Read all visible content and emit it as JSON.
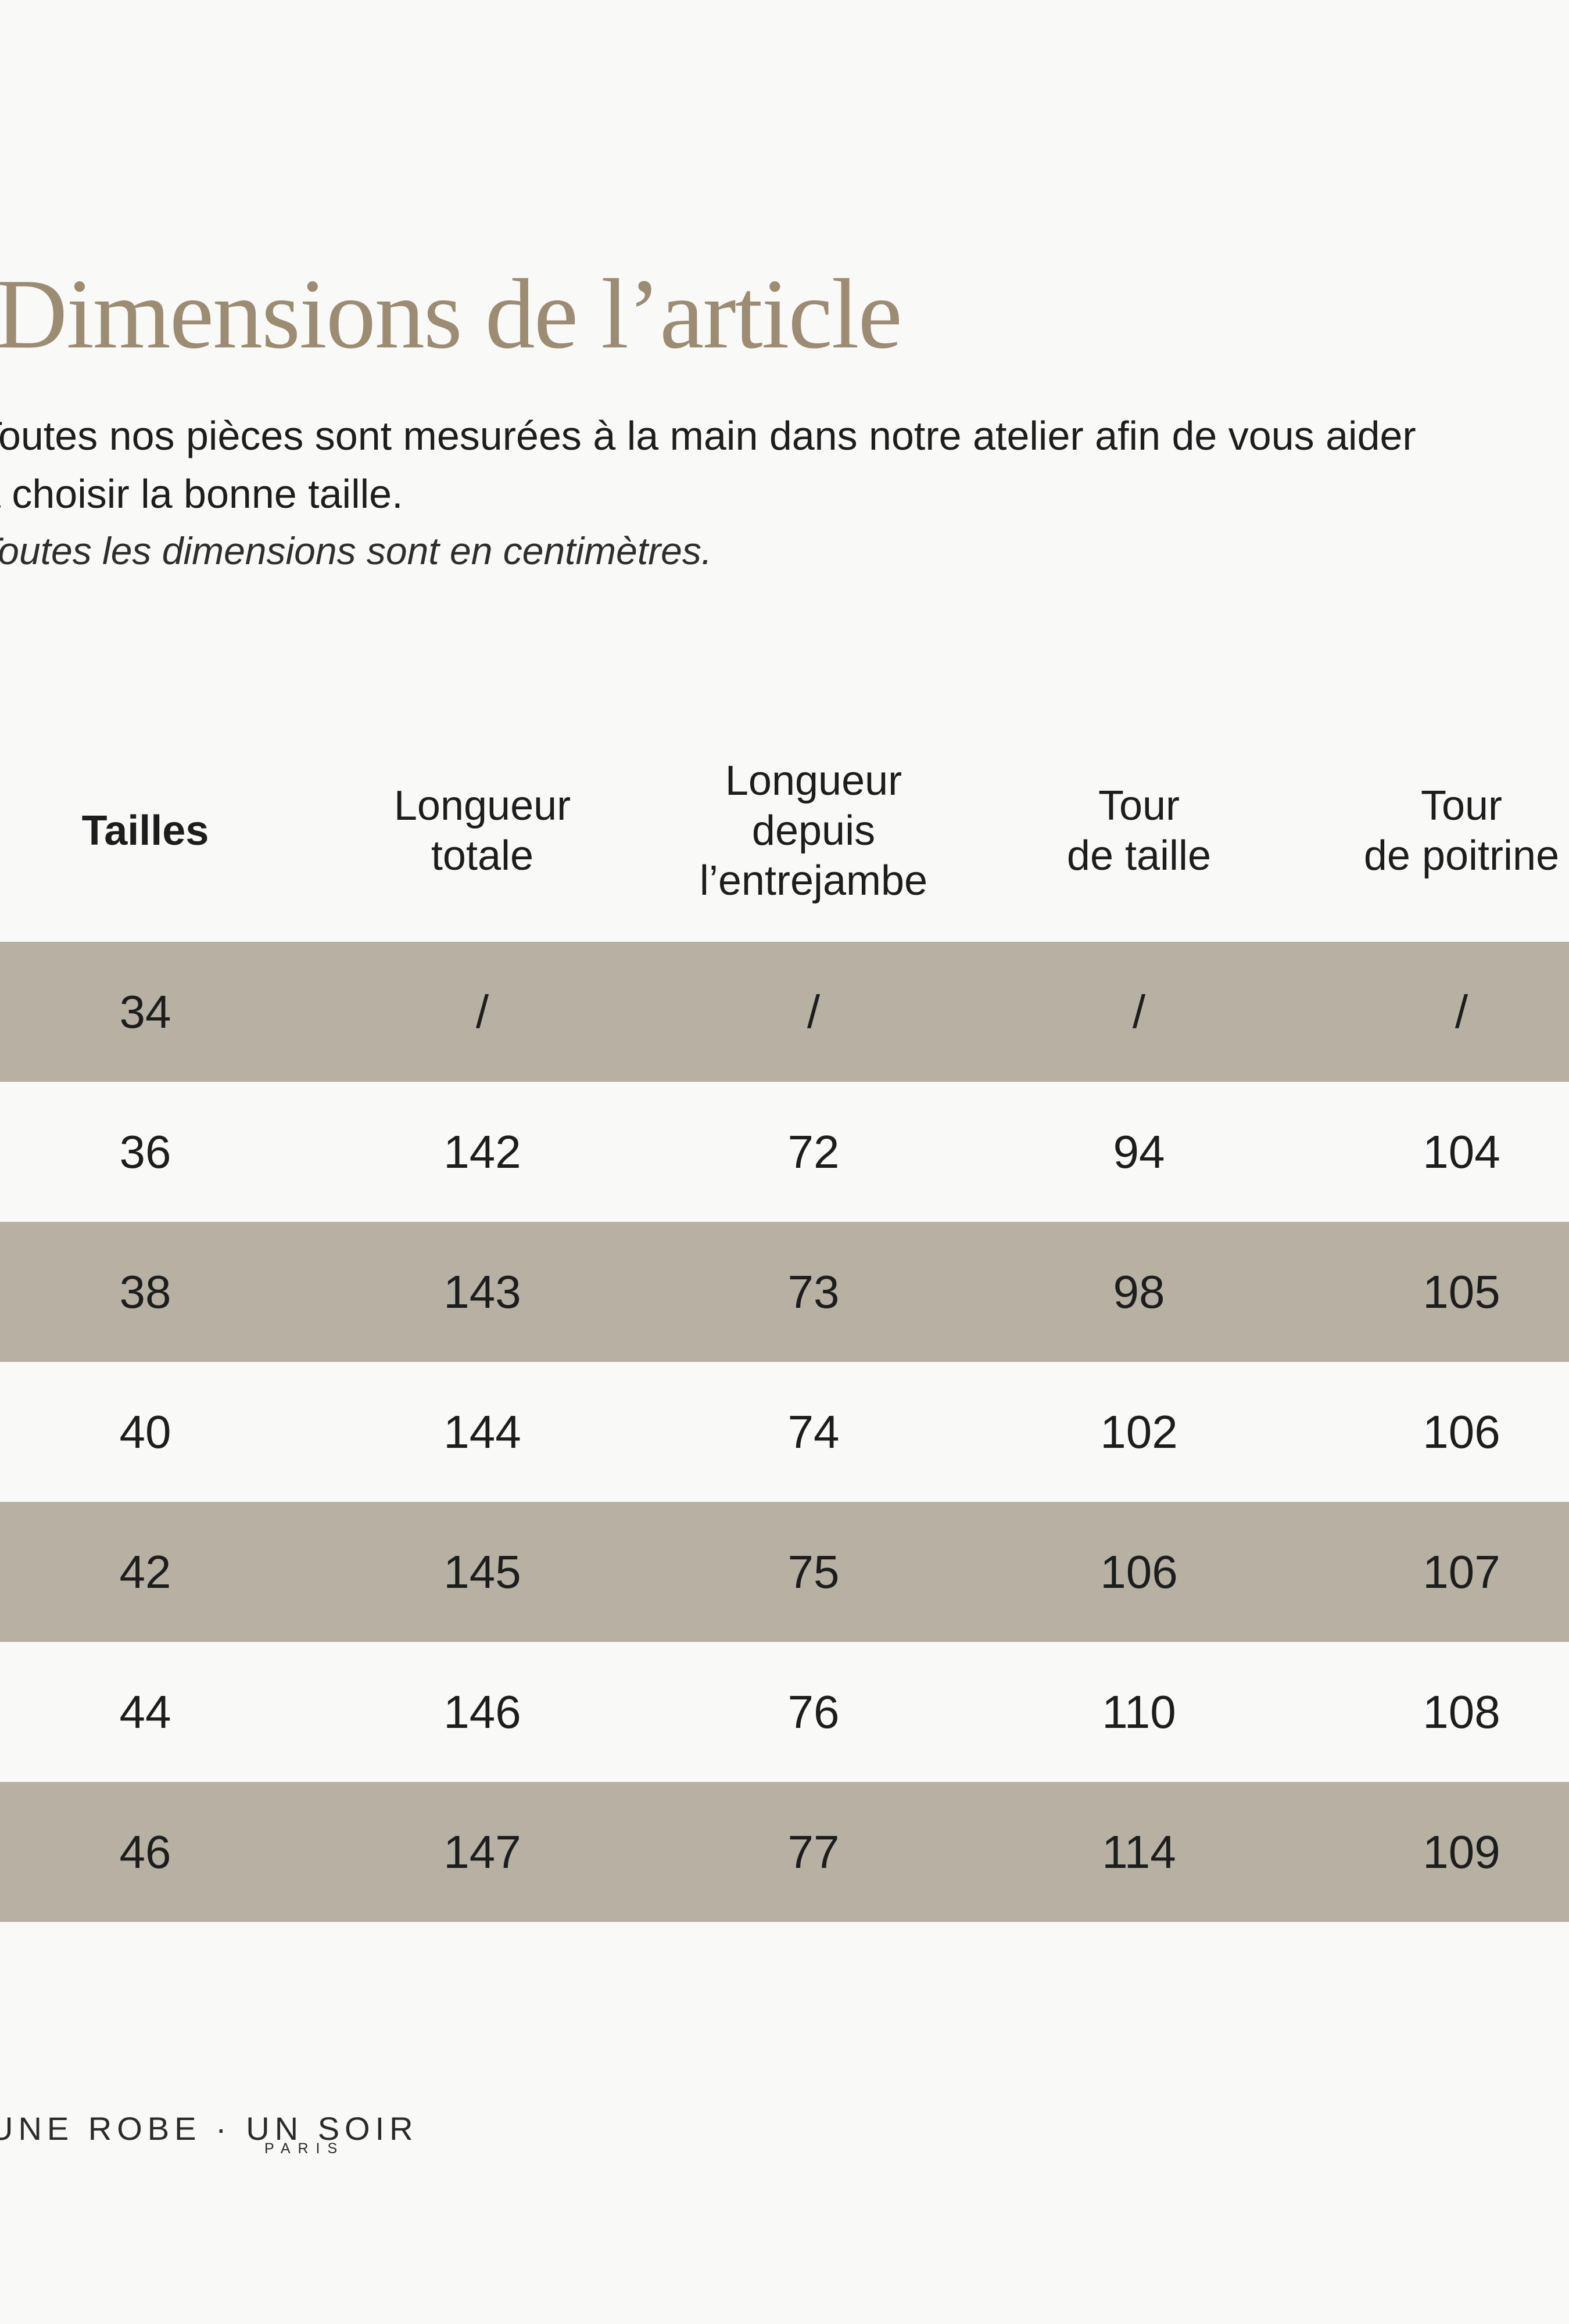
{
  "colors": {
    "background": "#f9f9f8",
    "row_alt": "#b7b1a4",
    "title": "#9c8c74",
    "text": "#1d1d1d",
    "note": "#2e2e2e",
    "brand": "#2b2b2b"
  },
  "page": {
    "title": "Dimensions de l’article",
    "intro_line1": "Toutes nos pièces sont mesurées à la main dans notre atelier afin de vous aider",
    "intro_line2": "à choisir la bonne taille.",
    "note": "Toutes les dimensions sont en centimètres."
  },
  "table": {
    "columns": [
      {
        "label": "Tailles",
        "lines": [
          "Tailles"
        ]
      },
      {
        "label": "Longueur totale",
        "lines": [
          "Longueur",
          "totale"
        ]
      },
      {
        "label": "Longueur depuis l’entrejambe",
        "lines": [
          "Longueur",
          "depuis",
          "l’entrejambe"
        ]
      },
      {
        "label": "Tour de taille",
        "lines": [
          "Tour",
          "de taille"
        ]
      },
      {
        "label": "Tour de poitrine",
        "lines": [
          "Tour",
          "de poitrine"
        ]
      }
    ],
    "rows": [
      {
        "cells": [
          "34",
          "/",
          "/",
          "/",
          "/"
        ]
      },
      {
        "cells": [
          "36",
          "142",
          "72",
          "94",
          "104"
        ]
      },
      {
        "cells": [
          "38",
          "143",
          "73",
          "98",
          "105"
        ]
      },
      {
        "cells": [
          "40",
          "144",
          "74",
          "102",
          "106"
        ]
      },
      {
        "cells": [
          "42",
          "145",
          "75",
          "106",
          "107"
        ]
      },
      {
        "cells": [
          "44",
          "146",
          "76",
          "110",
          "108"
        ]
      },
      {
        "cells": [
          "46",
          "147",
          "77",
          "114",
          "109"
        ]
      }
    ]
  },
  "footer": {
    "brand": "UNE ROBE · UN SOIR",
    "city": "PARIS"
  }
}
